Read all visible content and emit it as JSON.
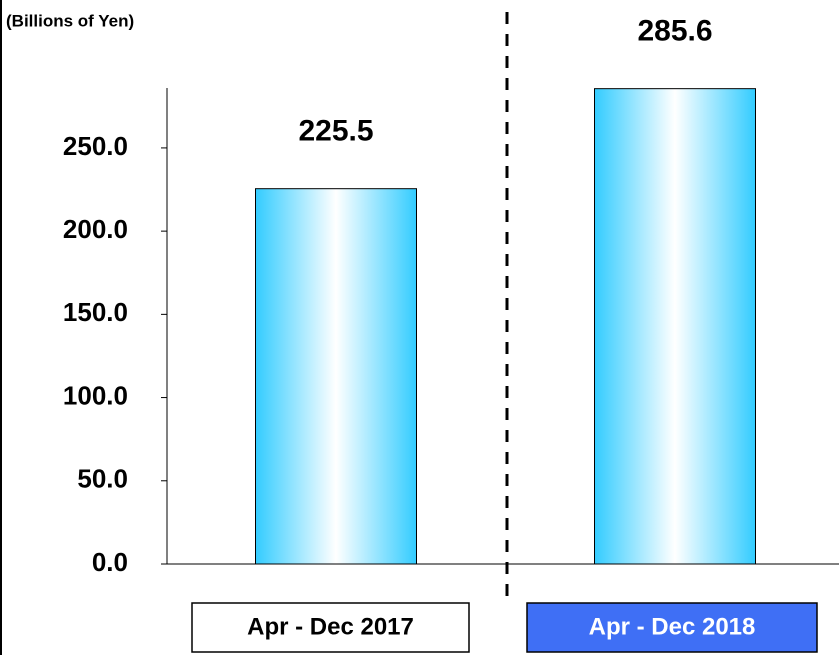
{
  "chart_data": {
    "type": "bar",
    "y_label": "(Billions of Yen)",
    "categories": [
      "Apr - Dec 2017",
      "Apr - Dec 2018"
    ],
    "values": [
      225.5,
      285.6
    ],
    "color": "#33ccff",
    "category_box_colors": [
      "#ffffff",
      "#3f6ff5"
    ],
    "ylim": [
      0,
      286
    ],
    "yticks": [
      {
        "value": 0,
        "label": "0.0"
      },
      {
        "value": 50,
        "label": "50.0"
      },
      {
        "value": 100,
        "label": "100.0"
      },
      {
        "value": 150,
        "label": "150.0"
      },
      {
        "value": 200,
        "label": "200.0"
      },
      {
        "value": 250,
        "label": "250.0"
      }
    ]
  }
}
